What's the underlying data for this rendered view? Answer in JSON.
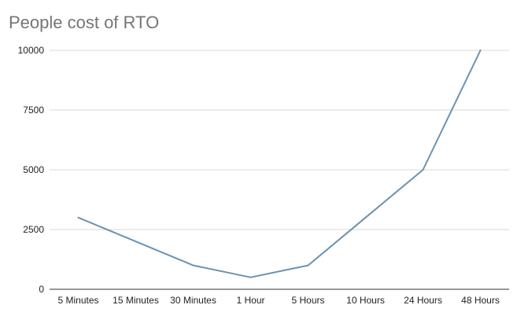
{
  "chart_data": {
    "type": "line",
    "title": "People cost of RTO",
    "xlabel": "",
    "ylabel": "",
    "categories": [
      "5 Minutes",
      "15 Minutes",
      "30 Minutes",
      "1 Hour",
      "5 Hours",
      "10 Hours",
      "24 Hours",
      "48 Hours"
    ],
    "series": [
      {
        "values": [
          3000,
          2000,
          1000,
          500,
          1000,
          3000,
          5000,
          10000
        ],
        "color": "#6b92b0"
      }
    ],
    "ylim": [
      0,
      10000
    ],
    "yticks": [
      "0",
      "2500",
      "5000",
      "7500",
      "10000"
    ],
    "grid": true,
    "legend": "none",
    "colors": {
      "gridline": "#d9d9d9",
      "axis": "#333333",
      "title": "#757575"
    }
  }
}
